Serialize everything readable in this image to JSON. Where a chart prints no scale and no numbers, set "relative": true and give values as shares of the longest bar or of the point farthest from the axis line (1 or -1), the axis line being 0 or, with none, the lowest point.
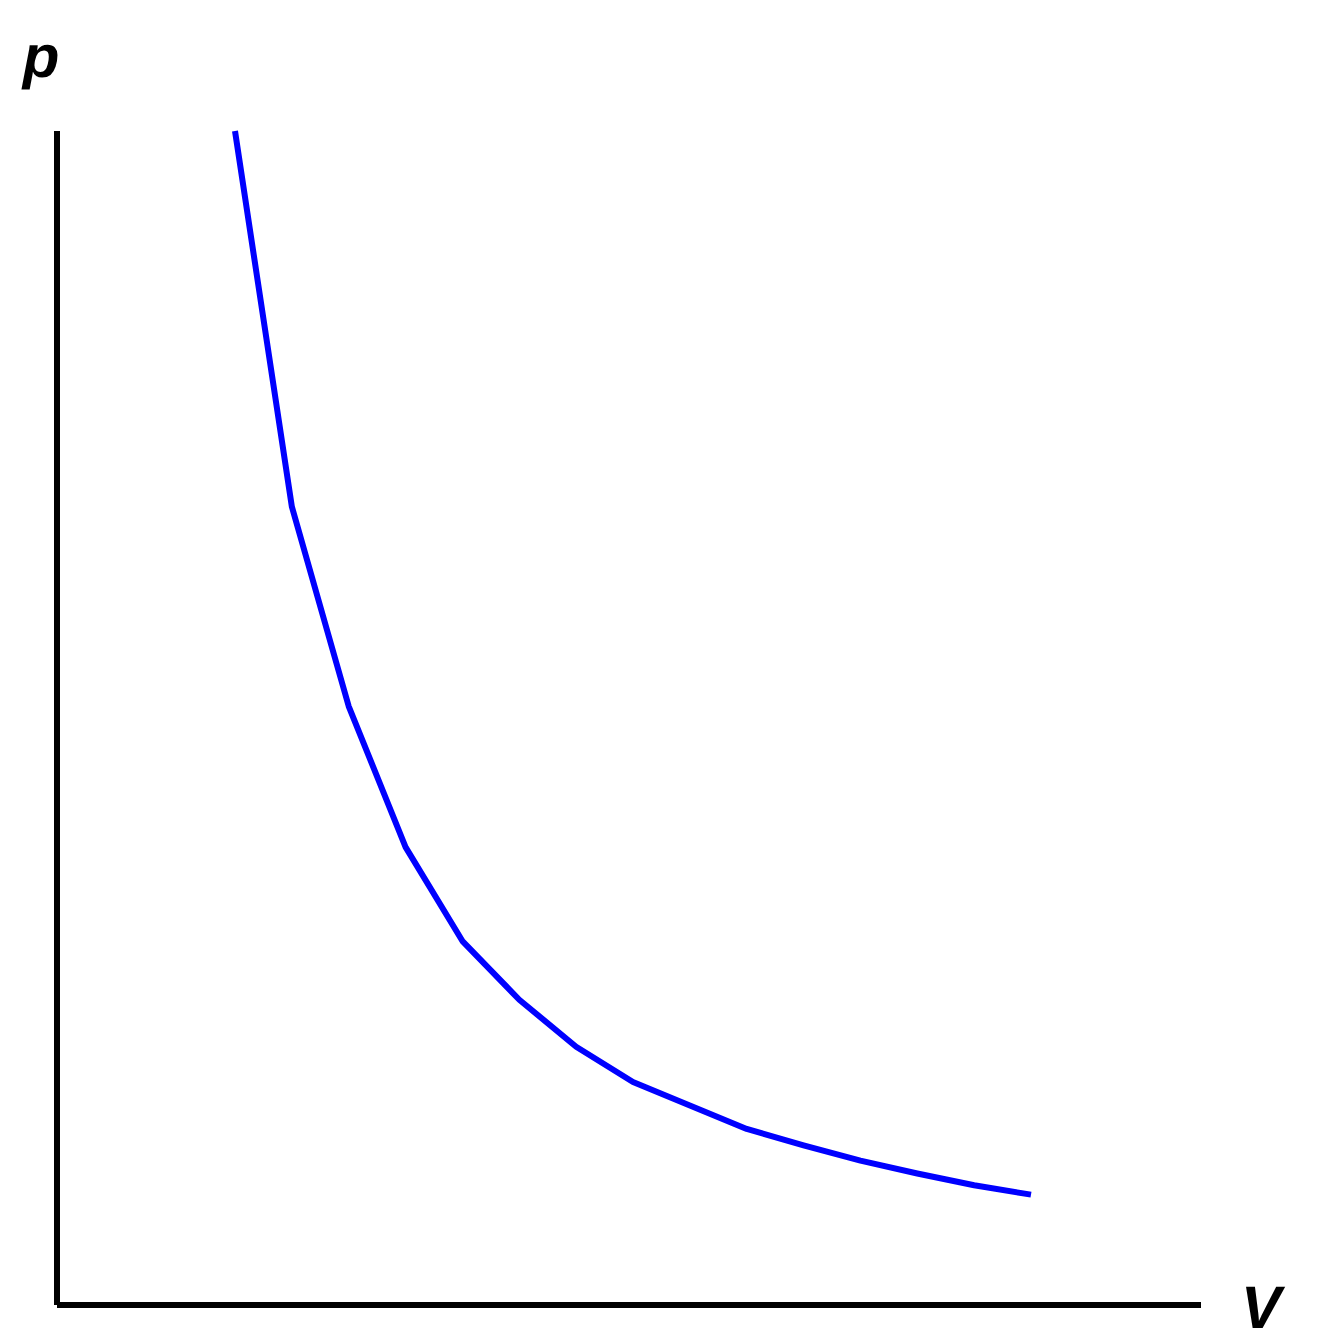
{
  "chart_data": {
    "type": "line",
    "relative": true,
    "xlabel": "V",
    "ylabel": "p",
    "categories": [
      null,
      null,
      null,
      null,
      null,
      null,
      null,
      null,
      null,
      null,
      null,
      null,
      null,
      null,
      null
    ],
    "series": [
      {
        "color": "#0000ff",
        "values": [
          1.0,
          0.68,
          0.51,
          0.39,
          0.31,
          0.26,
          0.22,
          0.19,
          0.17,
          0.15,
          0.136,
          0.123,
          0.112,
          0.102,
          0.094
        ]
      }
    ]
  }
}
